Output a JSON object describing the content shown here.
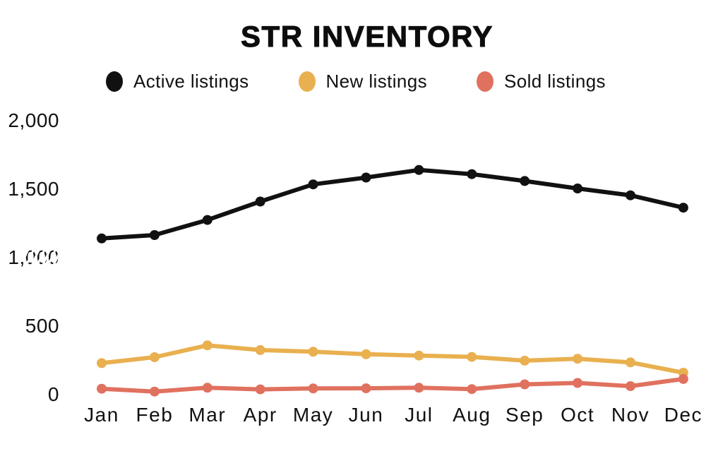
{
  "chart_data": {
    "type": "line",
    "title": "STR INVENTORY",
    "categories": [
      "Jan",
      "Feb",
      "Mar",
      "Apr",
      "May",
      "Jun",
      "Jul",
      "Aug",
      "Sep",
      "Oct",
      "Nov",
      "Dec"
    ],
    "series": [
      {
        "name": "Active listings",
        "color": "#111111",
        "values": [
          1140,
          1165,
          1275,
          1410,
          1535,
          1585,
          1640,
          1610,
          1560,
          1505,
          1455,
          1365
        ]
      },
      {
        "name": "New listings",
        "color": "#E9B04F",
        "values": [
          230,
          273,
          360,
          325,
          313,
          295,
          285,
          275,
          248,
          262,
          235,
          160
        ]
      },
      {
        "name": "Sold listings",
        "color": "#E0715F",
        "values": [
          43,
          22,
          50,
          38,
          45,
          46,
          50,
          40,
          75,
          85,
          62,
          114
        ]
      }
    ],
    "yticks": [
      {
        "label": "0",
        "value": 0
      },
      {
        "label": "500",
        "value": 500
      },
      {
        "label": "1,000",
        "value": 1000,
        "glitch_dashes": true
      },
      {
        "label": "1,500",
        "value": 1500
      },
      {
        "label": "2,000",
        "value": 2000
      }
    ],
    "ylim": [
      0,
      2000
    ],
    "xlabel": "",
    "ylabel": "",
    "grid": false,
    "legend_position": "top",
    "marker": "circle",
    "text_color": "#111111",
    "background_color": "#ffffff"
  }
}
